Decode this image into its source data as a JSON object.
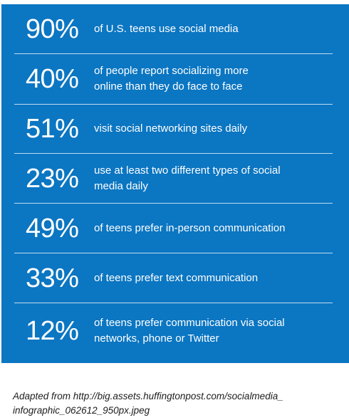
{
  "stats": [
    {
      "percent": "90%",
      "description": "of U.S. teens use social media"
    },
    {
      "percent": "40%",
      "description": "of people report socializing more online than they do face to face"
    },
    {
      "percent": "51%",
      "description": "visit social networking sites daily"
    },
    {
      "percent": "23%",
      "description": "use at least two different types of social media daily"
    },
    {
      "percent": "49%",
      "description": "of teens prefer in-person communication"
    },
    {
      "percent": "33%",
      "description": "of teens prefer text communication"
    },
    {
      "percent": "12%",
      "description": "of teens prefer communication via social networks, phone or Twitter"
    }
  ],
  "source": {
    "text": "Adapted from http://big.assets.huffingtonpost.com/socialmedia_ infographic_062612_950px.jpeg"
  },
  "colors": {
    "panel_background": "#0b76c2",
    "text_on_panel": "#ffffff",
    "divider": "#ffffff",
    "caption_text": "#1d1d1d"
  }
}
